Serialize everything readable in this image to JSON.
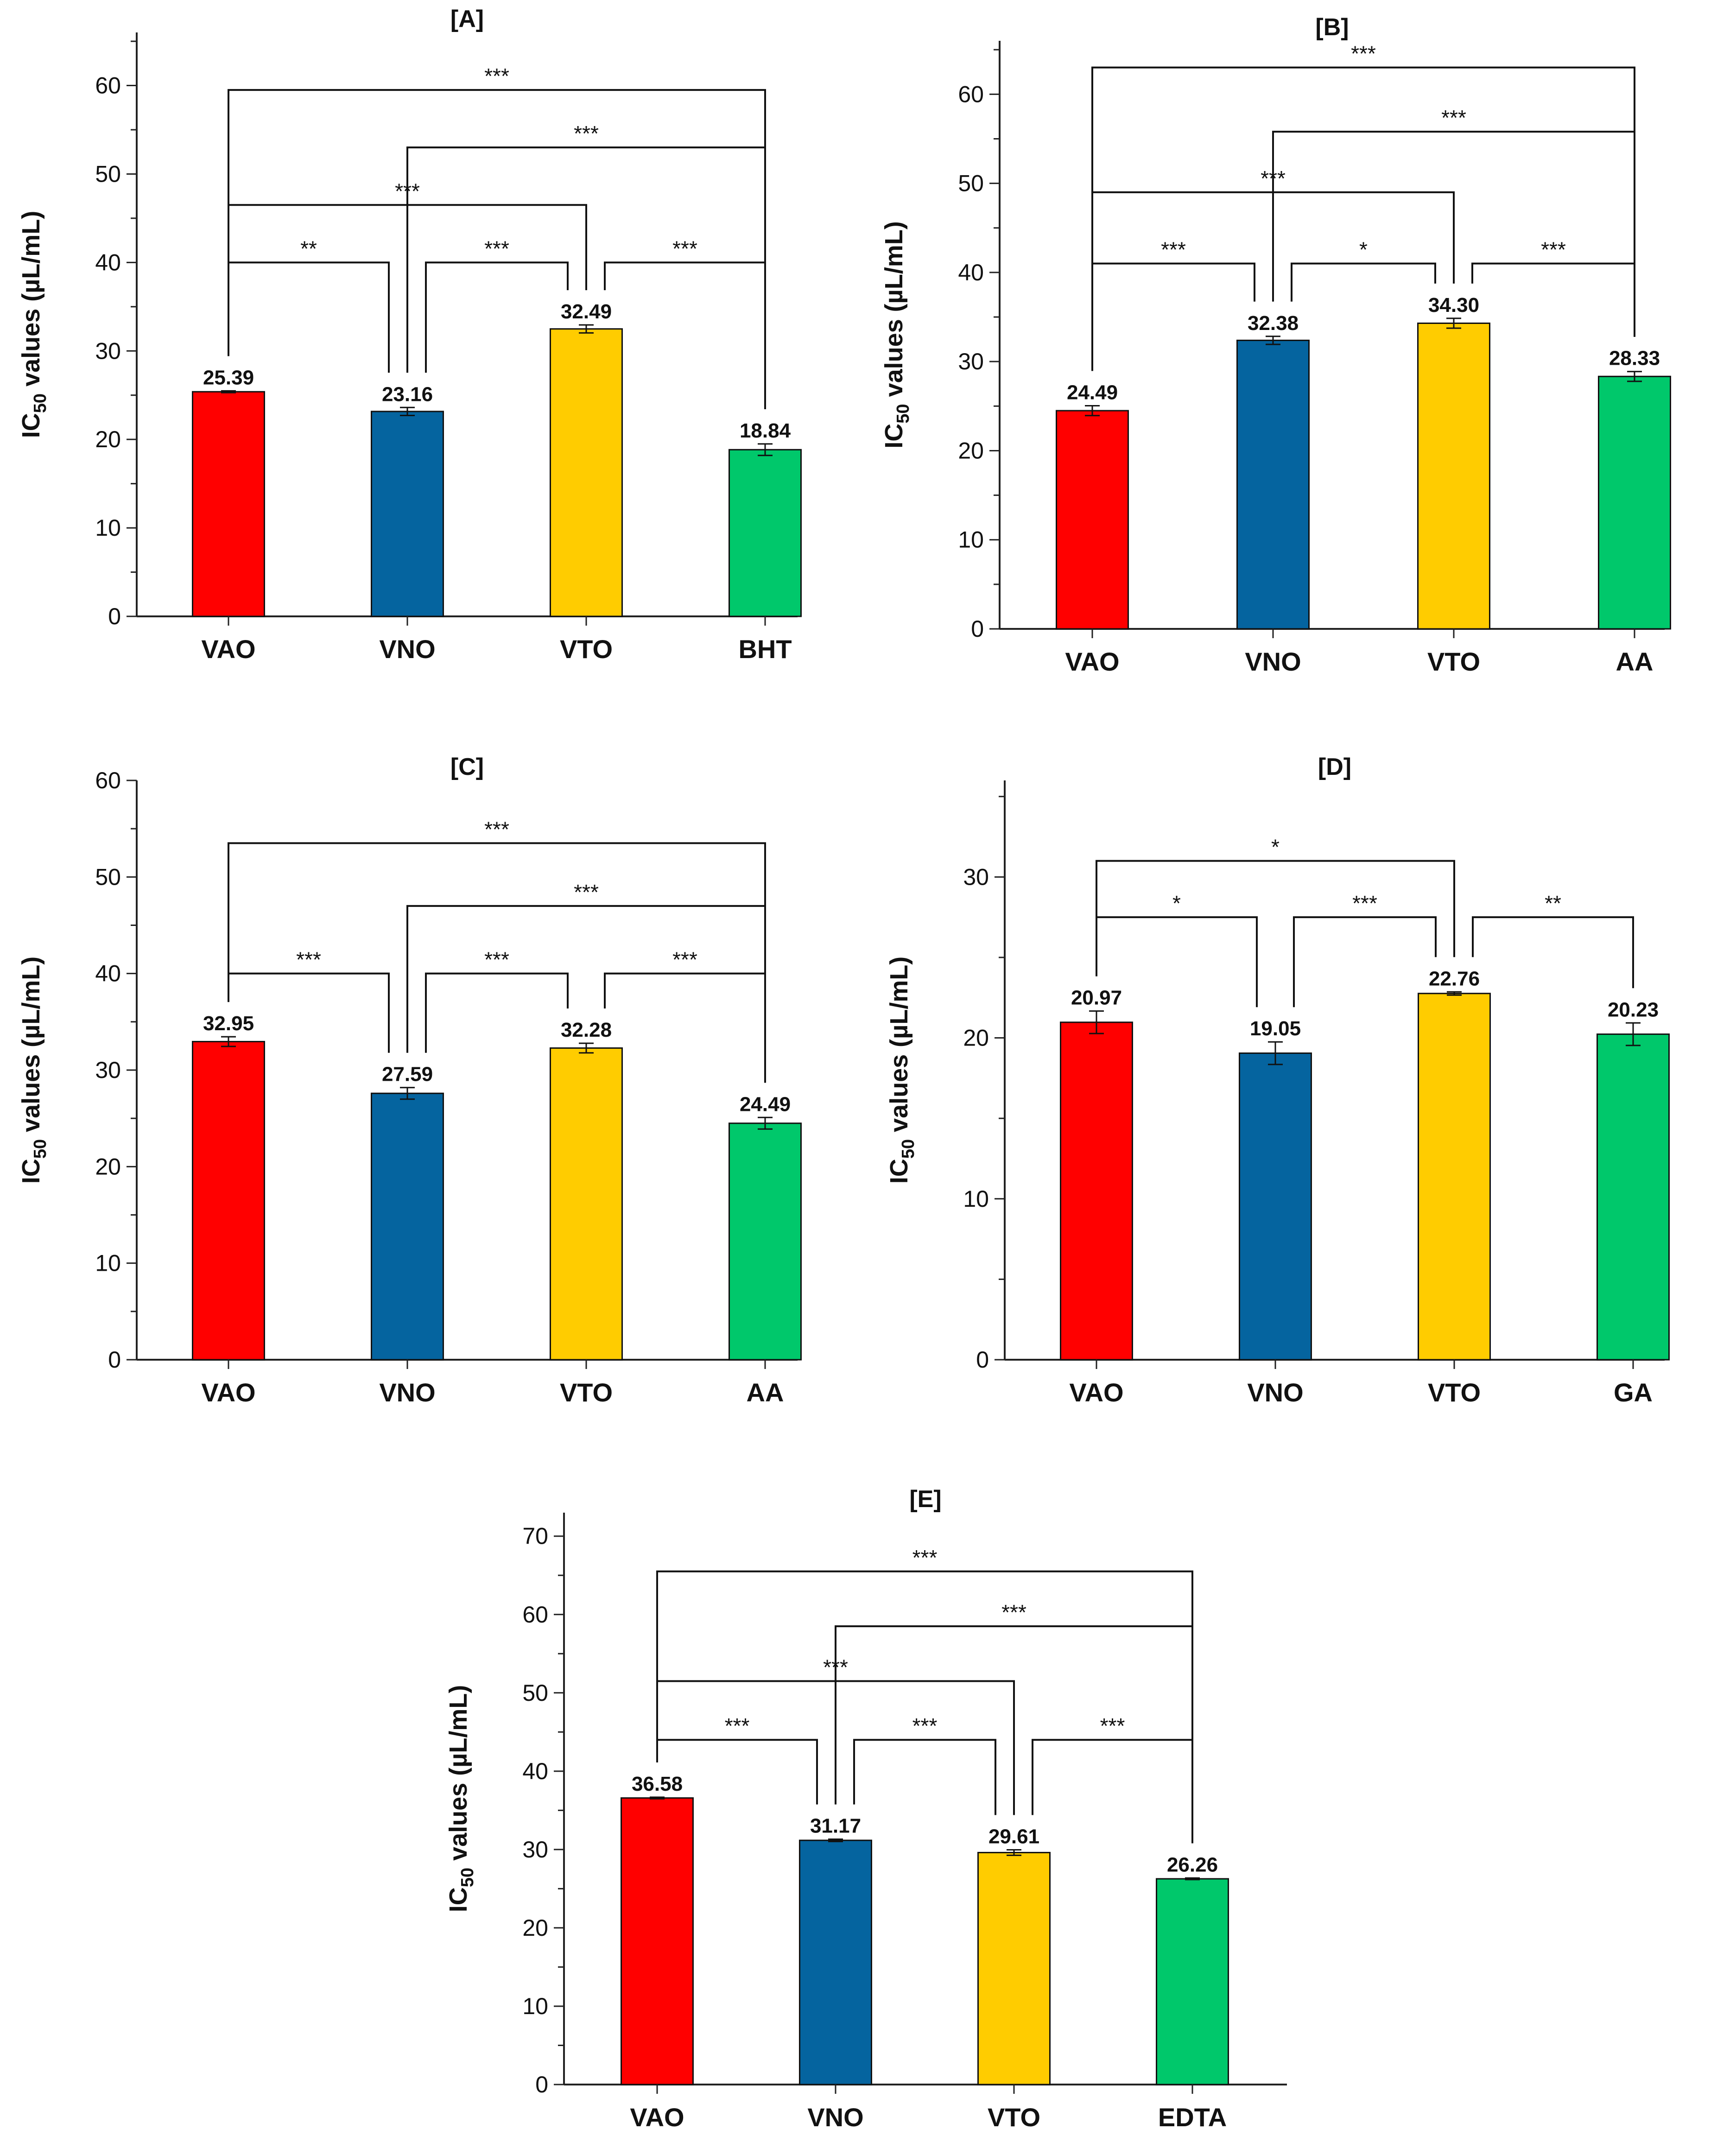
{
  "colors": {
    "VAO": "#ff0000",
    "VNO": "#05649f",
    "VTO": "#ffcc00",
    "REF": "#00c86b"
  },
  "axis_label": {
    "prefix": "IC",
    "sub": "50",
    "suffix": " values (µL/mL)"
  },
  "chart_data": [
    {
      "type": "bar",
      "title": "[A]",
      "categories": [
        "VAO",
        "VNO",
        "VTO",
        "BHT"
      ],
      "values": [
        25.39,
        23.16,
        32.49,
        18.84
      ],
      "value_labels": [
        "25.39",
        "23.16",
        "32.49",
        "18.84"
      ],
      "errors": [
        0.1,
        0.45,
        0.45,
        0.65
      ],
      "ylim": [
        0,
        66
      ],
      "yticks": [
        0,
        10,
        20,
        30,
        40,
        50,
        60
      ],
      "ylabel": "IC50 values (µL/mL)",
      "comparisons": [
        {
          "a": 0,
          "b": 1,
          "y": 40,
          "label": "**"
        },
        {
          "a": 1,
          "b": 2,
          "y": 40,
          "label": "***"
        },
        {
          "a": 2,
          "b": 3,
          "y": 40,
          "label": "***"
        },
        {
          "a": 0,
          "b": 2,
          "y": 46.5,
          "label": "***"
        },
        {
          "a": 1,
          "b": 3,
          "y": 53,
          "label": "***"
        },
        {
          "a": 0,
          "b": 3,
          "y": 59.5,
          "label": "***"
        }
      ]
    },
    {
      "type": "bar",
      "title": "[B]",
      "categories": [
        "VAO",
        "VNO",
        "VTO",
        "AA"
      ],
      "values": [
        24.49,
        32.38,
        34.3,
        28.33
      ],
      "value_labels": [
        "24.49",
        "32.38",
        "34.30",
        "28.33"
      ],
      "errors": [
        0.55,
        0.45,
        0.55,
        0.55
      ],
      "ylim": [
        0,
        66
      ],
      "yticks": [
        0,
        10,
        20,
        30,
        40,
        50,
        60
      ],
      "ylabel": "IC50 values (µL/mL)",
      "comparisons": [
        {
          "a": 0,
          "b": 1,
          "y": 41,
          "label": "***"
        },
        {
          "a": 1,
          "b": 2,
          "y": 41,
          "label": "*"
        },
        {
          "a": 2,
          "b": 3,
          "y": 41,
          "label": "***"
        },
        {
          "a": 0,
          "b": 2,
          "y": 49,
          "label": "***"
        },
        {
          "a": 1,
          "b": 3,
          "y": 55.8,
          "label": "***"
        },
        {
          "a": 0,
          "b": 3,
          "y": 63,
          "label": "***"
        }
      ]
    },
    {
      "type": "bar",
      "title": "[C]",
      "categories": [
        "VAO",
        "VNO",
        "VTO",
        "AA"
      ],
      "values": [
        32.95,
        27.59,
        32.28,
        24.49
      ],
      "value_labels": [
        "32.95",
        "27.59",
        "32.28",
        "24.49"
      ],
      "errors": [
        0.5,
        0.6,
        0.5,
        0.6
      ],
      "ylim": [
        0,
        60
      ],
      "yticks": [
        0,
        10,
        20,
        30,
        40,
        50,
        60
      ],
      "ylabel": "IC50 values (µL/mL)",
      "comparisons": [
        {
          "a": 0,
          "b": 1,
          "y": 40,
          "label": "***"
        },
        {
          "a": 1,
          "b": 2,
          "y": 40,
          "label": "***"
        },
        {
          "a": 2,
          "b": 3,
          "y": 40,
          "label": "***"
        },
        {
          "a": 1,
          "b": 3,
          "y": 47,
          "label": "***"
        },
        {
          "a": 0,
          "b": 3,
          "y": 53.5,
          "label": "***"
        }
      ]
    },
    {
      "type": "bar",
      "title": "[D]",
      "categories": [
        "VAO",
        "VNO",
        "VTO",
        "GA"
      ],
      "values": [
        20.97,
        19.05,
        22.76,
        20.23
      ],
      "value_labels": [
        "20.97",
        "19.05",
        "22.76",
        "20.23"
      ],
      "errors": [
        0.7,
        0.7,
        0.1,
        0.7
      ],
      "ylim": [
        0,
        36
      ],
      "yticks": [
        0,
        10,
        20,
        30
      ],
      "ylabel": "IC50 values (µL/mL)",
      "comparisons": [
        {
          "a": 0,
          "b": 1,
          "y": 27.5,
          "label": "*"
        },
        {
          "a": 1,
          "b": 2,
          "y": 27.5,
          "label": "***"
        },
        {
          "a": 2,
          "b": 3,
          "y": 27.5,
          "label": "**"
        },
        {
          "a": 0,
          "b": 2,
          "y": 31,
          "label": "*"
        }
      ]
    },
    {
      "type": "bar",
      "title": "[E]",
      "categories": [
        "VAO",
        "VNO",
        "VTO",
        "EDTA"
      ],
      "values": [
        36.58,
        31.17,
        29.61,
        26.26
      ],
      "value_labels": [
        "36.58",
        "31.17",
        "29.61",
        "26.26"
      ],
      "errors": [
        0.1,
        0.15,
        0.35,
        0.1
      ],
      "ylim": [
        0,
        73
      ],
      "yticks": [
        0,
        10,
        20,
        30,
        40,
        50,
        60,
        70
      ],
      "ylabel": "IC50 values (µL/mL)",
      "comparisons": [
        {
          "a": 0,
          "b": 1,
          "y": 44,
          "label": "***"
        },
        {
          "a": 1,
          "b": 2,
          "y": 44,
          "label": "***"
        },
        {
          "a": 2,
          "b": 3,
          "y": 44,
          "label": "***"
        },
        {
          "a": 0,
          "b": 2,
          "y": 51.5,
          "label": "***"
        },
        {
          "a": 1,
          "b": 3,
          "y": 58.5,
          "label": "***"
        },
        {
          "a": 0,
          "b": 3,
          "y": 65.5,
          "label": "***"
        }
      ]
    }
  ]
}
